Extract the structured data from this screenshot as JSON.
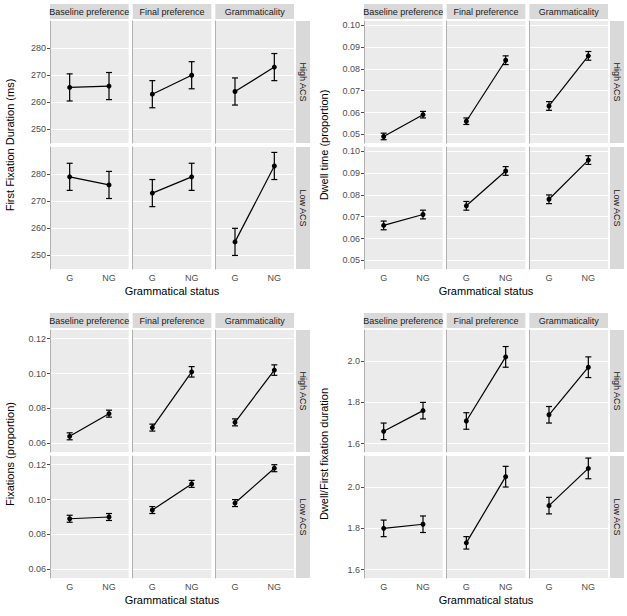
{
  "chart_data": [
    {
      "type": "line",
      "y_label": "First Fixation Duration (ms)",
      "x_label": "Grammatical status",
      "columns": [
        "Baseline preference",
        "Final preference",
        "Grammaticality"
      ],
      "rows": [
        "High ACS",
        "Low ACS"
      ],
      "categories": [
        "G",
        "NG"
      ],
      "ylim": [
        245,
        290
      ],
      "yticks": [
        250,
        260,
        270,
        280
      ],
      "grid": true,
      "marker": "circle",
      "color": "#000000",
      "panels": [
        {
          "column": "Baseline preference",
          "row": "High ACS",
          "values": [
            265.5,
            266
          ],
          "errors": [
            5,
            5
          ]
        },
        {
          "column": "Final preference",
          "row": "High ACS",
          "values": [
            263,
            270
          ],
          "errors": [
            5,
            5
          ]
        },
        {
          "column": "Grammaticality",
          "row": "High ACS",
          "values": [
            264,
            273
          ],
          "errors": [
            5,
            5
          ]
        },
        {
          "column": "Baseline preference",
          "row": "Low ACS",
          "values": [
            279,
            276
          ],
          "errors": [
            5,
            5
          ]
        },
        {
          "column": "Final preference",
          "row": "Low ACS",
          "values": [
            273,
            279
          ],
          "errors": [
            5,
            5
          ]
        },
        {
          "column": "Grammaticality",
          "row": "Low ACS",
          "values": [
            255,
            283
          ],
          "errors": [
            5,
            5
          ]
        }
      ]
    },
    {
      "type": "line",
      "y_label": "Dwell time (proportion)",
      "x_label": "Grammatical status",
      "columns": [
        "Baseline preference",
        "Final preference",
        "Grammaticality"
      ],
      "rows": [
        "High ACS",
        "Low ACS"
      ],
      "categories": [
        "G",
        "NG"
      ],
      "ylim": [
        0.046,
        0.102
      ],
      "yticks": [
        0.05,
        0.06,
        0.07,
        0.08,
        0.09,
        {
          "value": 0.1,
          "label": "0.10"
        }
      ],
      "grid": true,
      "marker": "circle",
      "color": "#000000",
      "panels": [
        {
          "column": "Baseline preference",
          "row": "High ACS",
          "values": [
            0.049,
            0.059
          ],
          "errors": [
            0.0015,
            0.0015
          ]
        },
        {
          "column": "Final preference",
          "row": "High ACS",
          "values": [
            0.056,
            0.084
          ],
          "errors": [
            0.0015,
            0.002
          ]
        },
        {
          "column": "Grammaticality",
          "row": "High ACS",
          "values": [
            0.063,
            0.086
          ],
          "errors": [
            0.002,
            0.002
          ]
        },
        {
          "column": "Baseline preference",
          "row": "Low ACS",
          "values": [
            0.066,
            0.071
          ],
          "errors": [
            0.002,
            0.002
          ]
        },
        {
          "column": "Final preference",
          "row": "Low ACS",
          "values": [
            0.075,
            0.091
          ],
          "errors": [
            0.002,
            0.002
          ]
        },
        {
          "column": "Grammaticality",
          "row": "Low ACS",
          "values": [
            0.078,
            0.096
          ],
          "errors": [
            0.002,
            0.002
          ]
        }
      ]
    },
    {
      "type": "line",
      "y_label": "Fixations (proportion)",
      "x_label": "Grammatical status",
      "columns": [
        "Baseline preference",
        "Final preference",
        "Grammaticality"
      ],
      "rows": [
        "High ACS",
        "Low ACS"
      ],
      "categories": [
        "G",
        "NG"
      ],
      "ylim": [
        0.055,
        0.125
      ],
      "yticks": [
        0.06,
        0.08,
        {
          "value": 0.1,
          "label": "0.10"
        },
        0.12
      ],
      "grid": true,
      "marker": "circle",
      "color": "#000000",
      "panels": [
        {
          "column": "Baseline preference",
          "row": "High ACS",
          "values": [
            0.064,
            0.077
          ],
          "errors": [
            0.002,
            0.002
          ]
        },
        {
          "column": "Final preference",
          "row": "High ACS",
          "values": [
            0.069,
            0.101
          ],
          "errors": [
            0.002,
            0.003
          ]
        },
        {
          "column": "Grammaticality",
          "row": "High ACS",
          "values": [
            0.072,
            0.102
          ],
          "errors": [
            0.002,
            0.003
          ]
        },
        {
          "column": "Baseline preference",
          "row": "Low ACS",
          "values": [
            0.089,
            0.09
          ],
          "errors": [
            0.002,
            0.002
          ]
        },
        {
          "column": "Final preference",
          "row": "Low ACS",
          "values": [
            0.094,
            0.109
          ],
          "errors": [
            0.002,
            0.002
          ]
        },
        {
          "column": "Grammaticality",
          "row": "Low ACS",
          "values": [
            0.098,
            0.118
          ],
          "errors": [
            0.002,
            0.002
          ]
        }
      ]
    },
    {
      "type": "line",
      "y_label": "Dwell/First fixation duration",
      "x_label": "Grammatical status",
      "columns": [
        "Baseline preference",
        "Final preference",
        "Grammaticality"
      ],
      "rows": [
        "High ACS",
        "Low ACS"
      ],
      "categories": [
        "G",
        "NG"
      ],
      "ylim": [
        1.56,
        2.15
      ],
      "yticks": [
        1.6,
        1.8,
        {
          "value": 2,
          "label": "2.0"
        }
      ],
      "grid": true,
      "marker": "circle",
      "color": "#000000",
      "panels": [
        {
          "column": "Baseline preference",
          "row": "High ACS",
          "values": [
            1.66,
            1.76
          ],
          "errors": [
            0.04,
            0.04
          ]
        },
        {
          "column": "Final preference",
          "row": "High ACS",
          "values": [
            1.71,
            2.02
          ],
          "errors": [
            0.04,
            0.05
          ]
        },
        {
          "column": "Grammaticality",
          "row": "High ACS",
          "values": [
            1.74,
            1.97
          ],
          "errors": [
            0.04,
            0.05
          ]
        },
        {
          "column": "Baseline preference",
          "row": "Low ACS",
          "values": [
            1.8,
            1.82
          ],
          "errors": [
            0.04,
            0.04
          ]
        },
        {
          "column": "Final preference",
          "row": "Low ACS",
          "values": [
            1.73,
            2.05
          ],
          "errors": [
            0.03,
            0.05
          ]
        },
        {
          "column": "Grammaticality",
          "row": "Low ACS",
          "values": [
            1.91,
            2.09
          ],
          "errors": [
            0.04,
            0.05
          ]
        }
      ]
    }
  ]
}
